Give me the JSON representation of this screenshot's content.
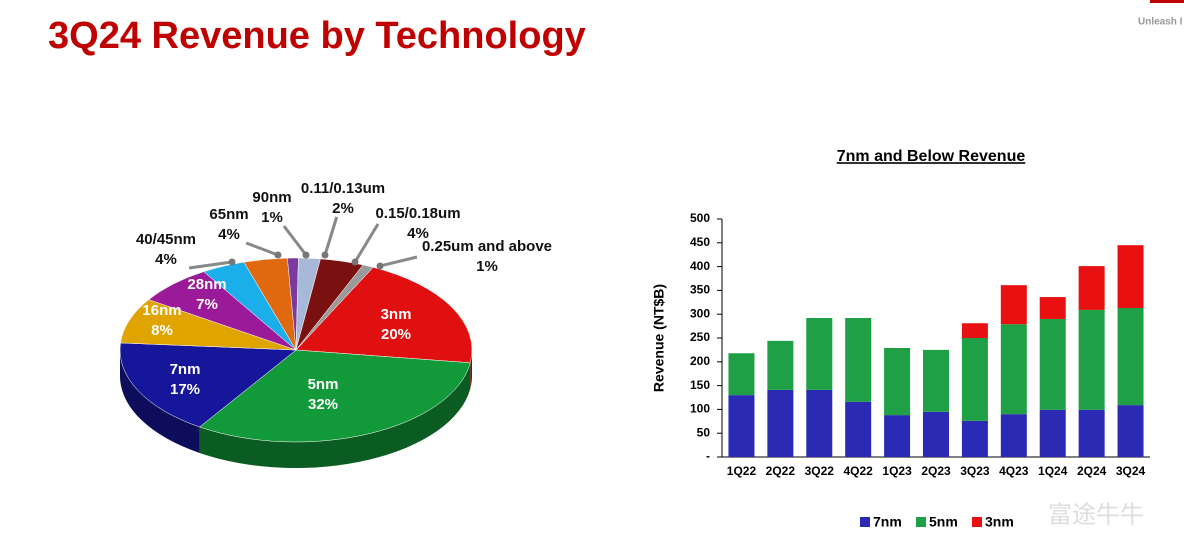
{
  "header": {
    "title": "3Q24 Revenue by Technology",
    "tagline": "Unleash I",
    "watermark": "富途牛牛"
  },
  "chart_data": [
    {
      "type": "pie",
      "categories": [
        "3nm",
        "5nm",
        "7nm",
        "16nm",
        "28nm",
        "40/45nm",
        "65nm",
        "90nm",
        "0.11/0.13um",
        "0.15/0.18um",
        "0.25um and above"
      ],
      "values": [
        20,
        32,
        17,
        8,
        7,
        4,
        4,
        1,
        2,
        4,
        1
      ],
      "value_labels": [
        "20%",
        "32%",
        "17%",
        "8%",
        "7%",
        "4%",
        "4%",
        "1%",
        "2%",
        "4%",
        "1%"
      ],
      "colors": [
        "#e01010",
        "#129a3a",
        "#16169a",
        "#e0a400",
        "#9a1a9a",
        "#1aaeea",
        "#e0680e",
        "#7a3aa0",
        "#a8b8d8",
        "#7a1010",
        "#9a9a9a"
      ]
    },
    {
      "type": "stacked_bar",
      "title": "7nm and Below Revenue",
      "y_label": "Revenue (NT$B)",
      "categories": [
        "1Q22",
        "2Q22",
        "3Q22",
        "4Q22",
        "1Q23",
        "2Q23",
        "3Q23",
        "4Q23",
        "1Q24",
        "2Q24",
        "3Q24"
      ],
      "series": [
        {
          "name": "7nm",
          "color": "#2a2ab4",
          "values": [
            130,
            141,
            141,
            116,
            88,
            95,
            76,
            90,
            99,
            99,
            109
          ]
        },
        {
          "name": "5nm",
          "color": "#1fa046",
          "values": [
            88,
            103,
            151,
            176,
            141,
            130,
            174,
            189,
            191,
            210,
            204
          ]
        },
        {
          "name": "3nm",
          "color": "#e81010",
          "values": [
            0,
            0,
            0,
            0,
            0,
            0,
            31,
            82,
            46,
            92,
            132
          ]
        }
      ],
      "ylim": [
        0,
        500
      ],
      "yticks": [
        {
          "value": 0,
          "label": "-"
        },
        50,
        100,
        150,
        200,
        250,
        300,
        350,
        400,
        450,
        500
      ],
      "legend": "bottom"
    }
  ]
}
